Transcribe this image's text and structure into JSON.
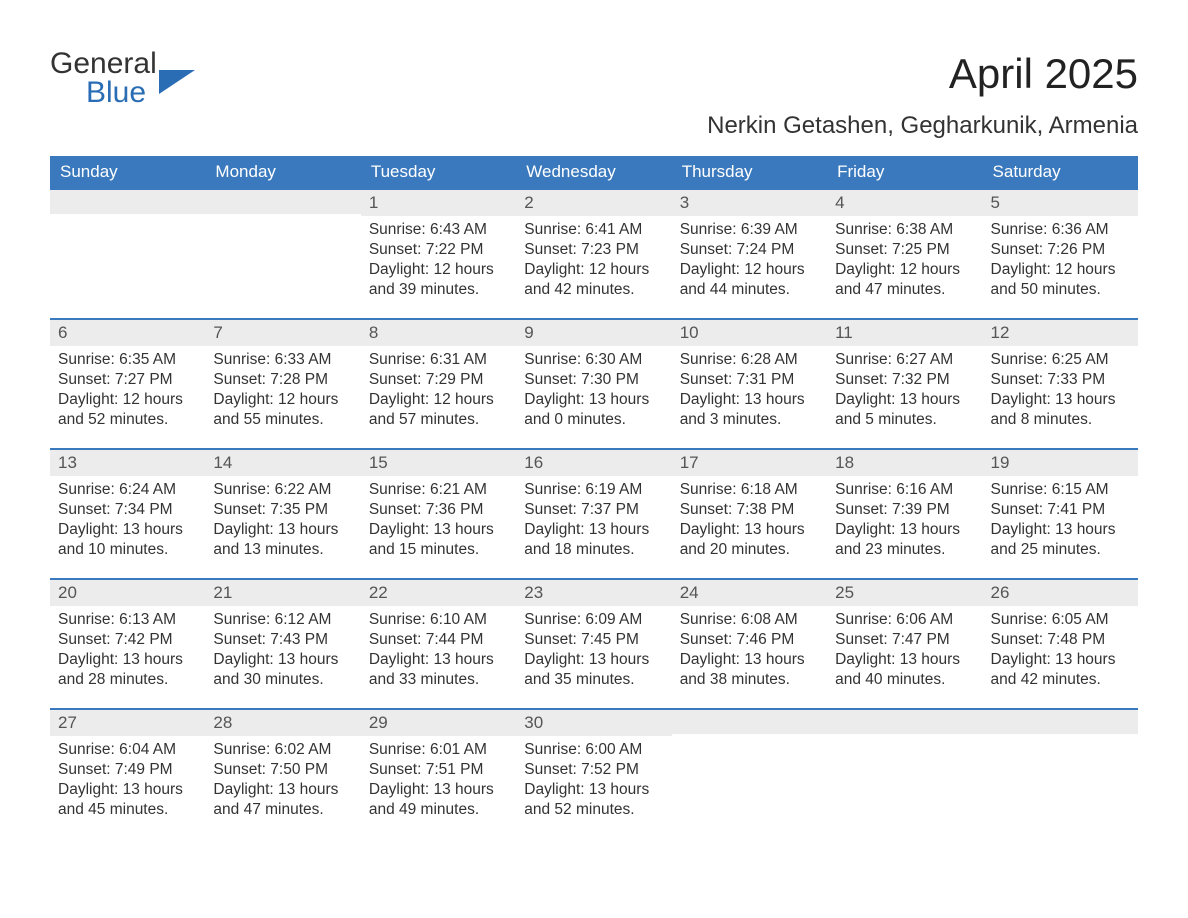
{
  "logo": {
    "line1": "General",
    "line2": "Blue"
  },
  "title": "April 2025",
  "location": "Nerkin Getashen, Gegharkunik, Armenia",
  "colors": {
    "header_bg": "#3a79bd",
    "header_text": "#ffffff",
    "band_bg": "#ececec",
    "accent_blue": "#2a6db5",
    "text": "#333333",
    "page_bg": "#ffffff"
  },
  "day_headers": [
    "Sunday",
    "Monday",
    "Tuesday",
    "Wednesday",
    "Thursday",
    "Friday",
    "Saturday"
  ],
  "weeks": [
    [
      {
        "num": "",
        "sunrise": "",
        "sunset": "",
        "daylight": ""
      },
      {
        "num": "",
        "sunrise": "",
        "sunset": "",
        "daylight": ""
      },
      {
        "num": "1",
        "sunrise": "Sunrise: 6:43 AM",
        "sunset": "Sunset: 7:22 PM",
        "daylight": "Daylight: 12 hours and 39 minutes."
      },
      {
        "num": "2",
        "sunrise": "Sunrise: 6:41 AM",
        "sunset": "Sunset: 7:23 PM",
        "daylight": "Daylight: 12 hours and 42 minutes."
      },
      {
        "num": "3",
        "sunrise": "Sunrise: 6:39 AM",
        "sunset": "Sunset: 7:24 PM",
        "daylight": "Daylight: 12 hours and 44 minutes."
      },
      {
        "num": "4",
        "sunrise": "Sunrise: 6:38 AM",
        "sunset": "Sunset: 7:25 PM",
        "daylight": "Daylight: 12 hours and 47 minutes."
      },
      {
        "num": "5",
        "sunrise": "Sunrise: 6:36 AM",
        "sunset": "Sunset: 7:26 PM",
        "daylight": "Daylight: 12 hours and 50 minutes."
      }
    ],
    [
      {
        "num": "6",
        "sunrise": "Sunrise: 6:35 AM",
        "sunset": "Sunset: 7:27 PM",
        "daylight": "Daylight: 12 hours and 52 minutes."
      },
      {
        "num": "7",
        "sunrise": "Sunrise: 6:33 AM",
        "sunset": "Sunset: 7:28 PM",
        "daylight": "Daylight: 12 hours and 55 minutes."
      },
      {
        "num": "8",
        "sunrise": "Sunrise: 6:31 AM",
        "sunset": "Sunset: 7:29 PM",
        "daylight": "Daylight: 12 hours and 57 minutes."
      },
      {
        "num": "9",
        "sunrise": "Sunrise: 6:30 AM",
        "sunset": "Sunset: 7:30 PM",
        "daylight": "Daylight: 13 hours and 0 minutes."
      },
      {
        "num": "10",
        "sunrise": "Sunrise: 6:28 AM",
        "sunset": "Sunset: 7:31 PM",
        "daylight": "Daylight: 13 hours and 3 minutes."
      },
      {
        "num": "11",
        "sunrise": "Sunrise: 6:27 AM",
        "sunset": "Sunset: 7:32 PM",
        "daylight": "Daylight: 13 hours and 5 minutes."
      },
      {
        "num": "12",
        "sunrise": "Sunrise: 6:25 AM",
        "sunset": "Sunset: 7:33 PM",
        "daylight": "Daylight: 13 hours and 8 minutes."
      }
    ],
    [
      {
        "num": "13",
        "sunrise": "Sunrise: 6:24 AM",
        "sunset": "Sunset: 7:34 PM",
        "daylight": "Daylight: 13 hours and 10 minutes."
      },
      {
        "num": "14",
        "sunrise": "Sunrise: 6:22 AM",
        "sunset": "Sunset: 7:35 PM",
        "daylight": "Daylight: 13 hours and 13 minutes."
      },
      {
        "num": "15",
        "sunrise": "Sunrise: 6:21 AM",
        "sunset": "Sunset: 7:36 PM",
        "daylight": "Daylight: 13 hours and 15 minutes."
      },
      {
        "num": "16",
        "sunrise": "Sunrise: 6:19 AM",
        "sunset": "Sunset: 7:37 PM",
        "daylight": "Daylight: 13 hours and 18 minutes."
      },
      {
        "num": "17",
        "sunrise": "Sunrise: 6:18 AM",
        "sunset": "Sunset: 7:38 PM",
        "daylight": "Daylight: 13 hours and 20 minutes."
      },
      {
        "num": "18",
        "sunrise": "Sunrise: 6:16 AM",
        "sunset": "Sunset: 7:39 PM",
        "daylight": "Daylight: 13 hours and 23 minutes."
      },
      {
        "num": "19",
        "sunrise": "Sunrise: 6:15 AM",
        "sunset": "Sunset: 7:41 PM",
        "daylight": "Daylight: 13 hours and 25 minutes."
      }
    ],
    [
      {
        "num": "20",
        "sunrise": "Sunrise: 6:13 AM",
        "sunset": "Sunset: 7:42 PM",
        "daylight": "Daylight: 13 hours and 28 minutes."
      },
      {
        "num": "21",
        "sunrise": "Sunrise: 6:12 AM",
        "sunset": "Sunset: 7:43 PM",
        "daylight": "Daylight: 13 hours and 30 minutes."
      },
      {
        "num": "22",
        "sunrise": "Sunrise: 6:10 AM",
        "sunset": "Sunset: 7:44 PM",
        "daylight": "Daylight: 13 hours and 33 minutes."
      },
      {
        "num": "23",
        "sunrise": "Sunrise: 6:09 AM",
        "sunset": "Sunset: 7:45 PM",
        "daylight": "Daylight: 13 hours and 35 minutes."
      },
      {
        "num": "24",
        "sunrise": "Sunrise: 6:08 AM",
        "sunset": "Sunset: 7:46 PM",
        "daylight": "Daylight: 13 hours and 38 minutes."
      },
      {
        "num": "25",
        "sunrise": "Sunrise: 6:06 AM",
        "sunset": "Sunset: 7:47 PM",
        "daylight": "Daylight: 13 hours and 40 minutes."
      },
      {
        "num": "26",
        "sunrise": "Sunrise: 6:05 AM",
        "sunset": "Sunset: 7:48 PM",
        "daylight": "Daylight: 13 hours and 42 minutes."
      }
    ],
    [
      {
        "num": "27",
        "sunrise": "Sunrise: 6:04 AM",
        "sunset": "Sunset: 7:49 PM",
        "daylight": "Daylight: 13 hours and 45 minutes."
      },
      {
        "num": "28",
        "sunrise": "Sunrise: 6:02 AM",
        "sunset": "Sunset: 7:50 PM",
        "daylight": "Daylight: 13 hours and 47 minutes."
      },
      {
        "num": "29",
        "sunrise": "Sunrise: 6:01 AM",
        "sunset": "Sunset: 7:51 PM",
        "daylight": "Daylight: 13 hours and 49 minutes."
      },
      {
        "num": "30",
        "sunrise": "Sunrise: 6:00 AM",
        "sunset": "Sunset: 7:52 PM",
        "daylight": "Daylight: 13 hours and 52 minutes."
      },
      {
        "num": "",
        "sunrise": "",
        "sunset": "",
        "daylight": ""
      },
      {
        "num": "",
        "sunrise": "",
        "sunset": "",
        "daylight": ""
      },
      {
        "num": "",
        "sunrise": "",
        "sunset": "",
        "daylight": ""
      }
    ]
  ]
}
